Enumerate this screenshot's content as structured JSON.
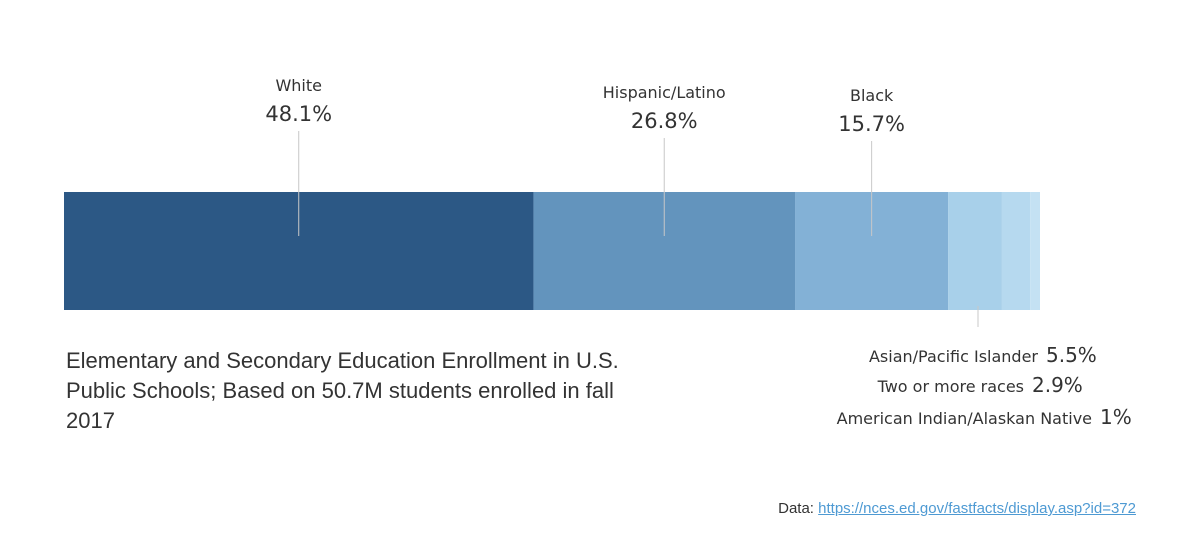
{
  "chart_data": {
    "type": "bar",
    "orientation": "horizontal",
    "stacked": true,
    "categories": [
      "White",
      "Hispanic/Latino",
      "Black",
      "Asian/Pacific Islander",
      "Two or more races",
      "American Indian/Alaskan Native"
    ],
    "values": [
      48.1,
      26.8,
      15.7,
      5.5,
      2.9,
      1.0
    ],
    "value_labels": [
      "48.1%",
      "26.8%",
      "15.7%",
      "5.5%",
      "2.9%",
      "1%"
    ],
    "colors": [
      "#2c5885",
      "#6394bd",
      "#83b1d6",
      "#a8d0ea",
      "#b6d9ef",
      "#c4e1f3"
    ],
    "grid": false,
    "legend": "none"
  },
  "description": "Elementary and Secondary Education Enrollment in U.S. Public Schools; Based on 50.7M students enrolled in fall 2017",
  "source": {
    "label": "Data:",
    "url_text": "https://nces.ed.gov/fastfacts/display.asp?id=372"
  }
}
